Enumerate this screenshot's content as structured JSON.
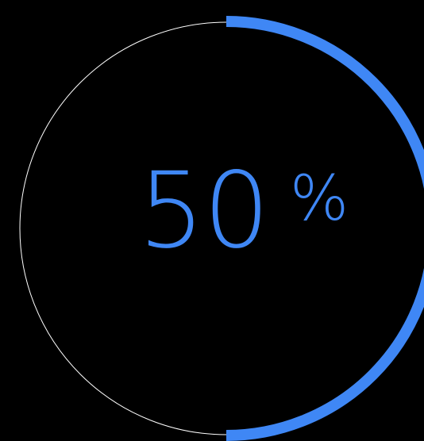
{
  "progress": {
    "value_text": "50",
    "unit_text": "%",
    "fraction": 0.5
  },
  "colors": {
    "background": "#000000",
    "accent": "#3f87f5",
    "track": "#ffffff"
  }
}
